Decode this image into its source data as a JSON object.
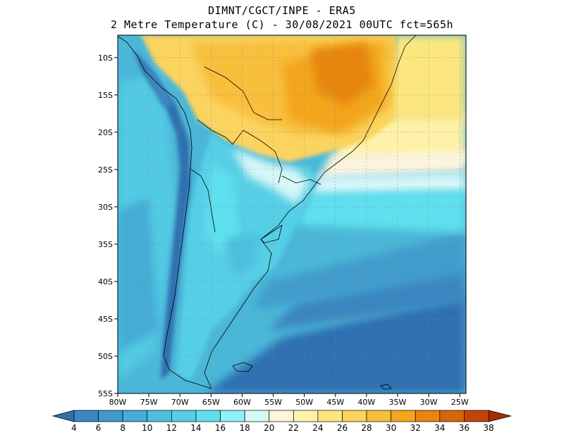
{
  "title_line1": "DIMNT/CGCT/INPE -  ERA5",
  "title_line2": "2 Metre Temperature (C) -  30/08/2021 00UTC fct=565h",
  "lat_ticks": [
    {
      "value": -10,
      "label": "10S"
    },
    {
      "value": -15,
      "label": "15S"
    },
    {
      "value": -20,
      "label": "20S"
    },
    {
      "value": -25,
      "label": "25S"
    },
    {
      "value": -30,
      "label": "30S"
    },
    {
      "value": -35,
      "label": "35S"
    },
    {
      "value": -40,
      "label": "40S"
    },
    {
      "value": -45,
      "label": "45S"
    },
    {
      "value": -50,
      "label": "50S"
    },
    {
      "value": -55,
      "label": "55S"
    }
  ],
  "lon_ticks": [
    {
      "value": -80,
      "label": "80W"
    },
    {
      "value": -75,
      "label": "75W"
    },
    {
      "value": -70,
      "label": "70W"
    },
    {
      "value": -65,
      "label": "65W"
    },
    {
      "value": -60,
      "label": "60W"
    },
    {
      "value": -55,
      "label": "55W"
    },
    {
      "value": -50,
      "label": "50W"
    },
    {
      "value": -45,
      "label": "45W"
    },
    {
      "value": -40,
      "label": "40W"
    },
    {
      "value": -35,
      "label": "35W"
    },
    {
      "value": -30,
      "label": "30W"
    },
    {
      "value": -25,
      "label": "25W"
    }
  ],
  "extent": {
    "lon_min": -80,
    "lon_max": -24,
    "lat_min": -55,
    "lat_max": -7
  },
  "colorbar": {
    "labels": [
      "4",
      "6",
      "8",
      "10",
      "12",
      "14",
      "16",
      "18",
      "20",
      "22",
      "24",
      "26",
      "28",
      "30",
      "32",
      "34",
      "36",
      "38"
    ],
    "colors": [
      "#2f6fb0",
      "#3a86c0",
      "#3f9acb",
      "#45acd6",
      "#4ec0df",
      "#55cfe6",
      "#5ee0ee",
      "#8ff0f5",
      "#d6f6f8",
      "#fdf4de",
      "#fdf2a8",
      "#fce77f",
      "#fbd45e",
      "#f8bf3d",
      "#f3a51c",
      "#e7860e",
      "#d7650a",
      "#c24508",
      "#a62e05"
    ]
  },
  "map": {
    "type": "filled-contour",
    "variable": "2 Metre Temperature (C)",
    "ocean_color": "#4bb7d8",
    "land_warm_color": "#f3a828",
    "land_hot_color": "#e7860e",
    "andes_color": "#2f6fb0"
  }
}
